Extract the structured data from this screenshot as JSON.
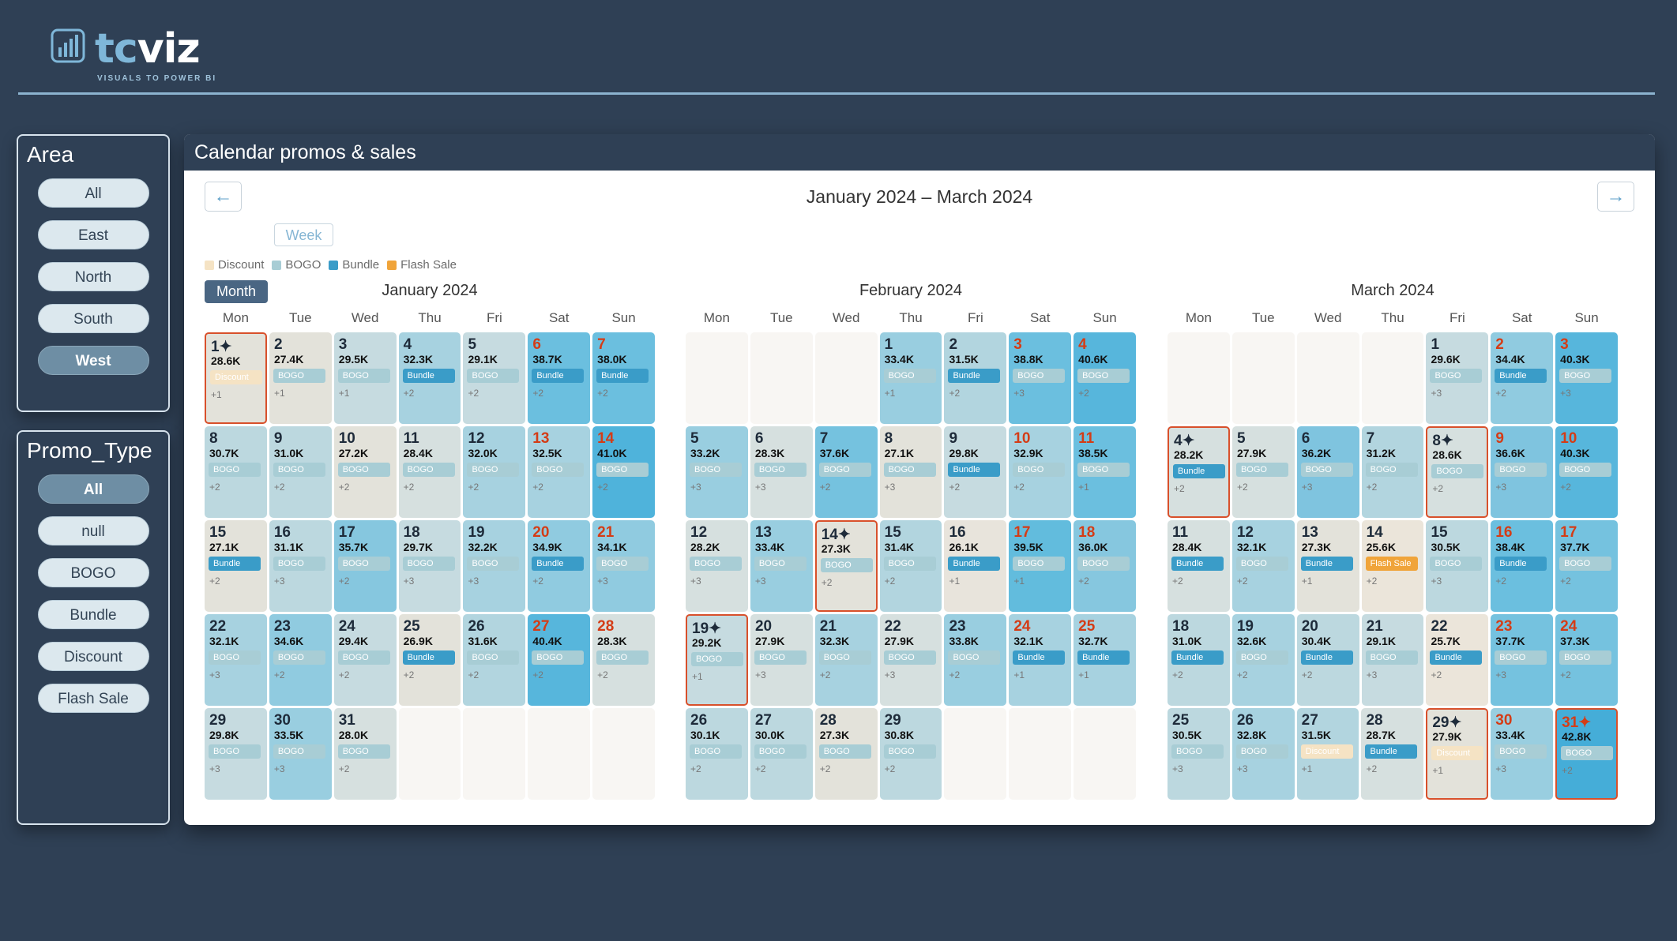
{
  "brand": {
    "name_prefix": "tc",
    "name_suffix": "viz",
    "tagline": "VISUALS TO POWER BI"
  },
  "area_slicer": {
    "title": "Area",
    "options": [
      {
        "label": "All",
        "selected": false
      },
      {
        "label": "East",
        "selected": false
      },
      {
        "label": "North",
        "selected": false
      },
      {
        "label": "South",
        "selected": false
      },
      {
        "label": "West",
        "selected": true
      }
    ]
  },
  "promo_slicer": {
    "title": "Promo_Type",
    "options": [
      {
        "label": "All",
        "selected": true
      },
      {
        "label": "null",
        "selected": false
      },
      {
        "label": "BOGO",
        "selected": false
      },
      {
        "label": "Bundle",
        "selected": false
      },
      {
        "label": "Discount",
        "selected": false
      },
      {
        "label": "Flash Sale",
        "selected": false
      }
    ]
  },
  "calendar": {
    "panel_title": "Calendar promos & sales",
    "range_title": "January 2024 – March 2024",
    "prev_label": "←",
    "next_label": "→",
    "views": {
      "month": "Month",
      "week": "Week",
      "active": "Month"
    },
    "legend": [
      {
        "label": "Discount",
        "color": "#f5e3c4"
      },
      {
        "label": "BOGO",
        "color": "#a8cdd5"
      },
      {
        "label": "Bundle",
        "color": "#3a9cc8"
      },
      {
        "label": "Flash Sale",
        "color": "#f0a43a"
      }
    ],
    "weekday_labels": [
      "Mon",
      "Tue",
      "Wed",
      "Thu",
      "Fri",
      "Sat",
      "Sun"
    ],
    "promo_colors": {
      "Discount": "#f5e3c4",
      "BOGO": "#a8cdd5",
      "Bundle": "#3a9cc8",
      "Flash Sale": "#f0a43a"
    },
    "months": [
      {
        "title": "January 2024",
        "first_weekday": 0,
        "days": [
          {
            "day": "1✦",
            "value": "28.6K",
            "promo": "Discount",
            "more": "+1",
            "bg": "#e3e2da",
            "highlight": true
          },
          {
            "day": "2",
            "value": "27.4K",
            "promo": "BOGO",
            "more": "+1",
            "bg": "#e3e2da"
          },
          {
            "day": "3",
            "value": "29.5K",
            "promo": "BOGO",
            "more": "+1",
            "bg": "#c6dbe0"
          },
          {
            "day": "4",
            "value": "32.3K",
            "promo": "Bundle",
            "more": "+2",
            "bg": "#a7d2e0"
          },
          {
            "day": "5",
            "value": "29.1K",
            "promo": "BOGO",
            "more": "+2",
            "bg": "#c6dbe0"
          },
          {
            "day": "6",
            "value": "38.7K",
            "promo": "Bundle",
            "more": "+2",
            "bg": "#6bbfdf"
          },
          {
            "day": "7",
            "value": "38.0K",
            "promo": "Bundle",
            "more": "+2",
            "bg": "#6bbfdf"
          },
          {
            "day": "8",
            "value": "30.7K",
            "promo": "BOGO",
            "more": "+2",
            "bg": "#bcd8df"
          },
          {
            "day": "9",
            "value": "31.0K",
            "promo": "BOGO",
            "more": "+2",
            "bg": "#bcd8df"
          },
          {
            "day": "10",
            "value": "27.2K",
            "promo": "BOGO",
            "more": "+2",
            "bg": "#e3e2da"
          },
          {
            "day": "11",
            "value": "28.4K",
            "promo": "BOGO",
            "more": "+2",
            "bg": "#d6e0df"
          },
          {
            "day": "12",
            "value": "32.0K",
            "promo": "BOGO",
            "more": "+2",
            "bg": "#a7d2e0"
          },
          {
            "day": "13",
            "value": "32.5K",
            "promo": "BOGO",
            "more": "+2",
            "bg": "#a7d2e0"
          },
          {
            "day": "14",
            "value": "41.0K",
            "promo": "BOGO",
            "more": "+2",
            "bg": "#4fb3db"
          },
          {
            "day": "15",
            "value": "27.1K",
            "promo": "Bundle",
            "more": "+2",
            "bg": "#e3e2da"
          },
          {
            "day": "16",
            "value": "31.1K",
            "promo": "BOGO",
            "more": "+3",
            "bg": "#bcd8df"
          },
          {
            "day": "17",
            "value": "35.7K",
            "promo": "BOGO",
            "more": "+2",
            "bg": "#86c7df"
          },
          {
            "day": "18",
            "value": "29.7K",
            "promo": "BOGO",
            "more": "+3",
            "bg": "#c6dbe0"
          },
          {
            "day": "19",
            "value": "32.2K",
            "promo": "BOGO",
            "more": "+3",
            "bg": "#a7d2e0"
          },
          {
            "day": "20",
            "value": "34.9K",
            "promo": "Bundle",
            "more": "+2",
            "bg": "#90cbe0"
          },
          {
            "day": "21",
            "value": "34.1K",
            "promo": "BOGO",
            "more": "+3",
            "bg": "#90cbe0"
          },
          {
            "day": "22",
            "value": "32.1K",
            "promo": "BOGO",
            "more": "+3",
            "bg": "#a7d2e0"
          },
          {
            "day": "23",
            "value": "34.6K",
            "promo": "BOGO",
            "more": "+2",
            "bg": "#90cbe0"
          },
          {
            "day": "24",
            "value": "29.4K",
            "promo": "BOGO",
            "more": "+2",
            "bg": "#c6dbe0"
          },
          {
            "day": "25",
            "value": "26.9K",
            "promo": "Bundle",
            "more": "+2",
            "bg": "#e3e2da"
          },
          {
            "day": "26",
            "value": "31.6K",
            "promo": "BOGO",
            "more": "+2",
            "bg": "#b2d5df"
          },
          {
            "day": "27",
            "value": "40.4K",
            "promo": "BOGO",
            "more": "+2",
            "bg": "#57b6dc"
          },
          {
            "day": "28",
            "value": "28.3K",
            "promo": "BOGO",
            "more": "+2",
            "bg": "#d6e0df"
          },
          {
            "day": "29",
            "value": "29.8K",
            "promo": "BOGO",
            "more": "+3",
            "bg": "#c6dbe0"
          },
          {
            "day": "30",
            "value": "33.5K",
            "promo": "BOGO",
            "more": "+3",
            "bg": "#99cee0"
          },
          {
            "day": "31",
            "value": "28.0K",
            "promo": "BOGO",
            "more": "+2",
            "bg": "#d6e0df"
          }
        ]
      },
      {
        "title": "February 2024",
        "first_weekday": 3,
        "days": [
          {
            "day": "1",
            "value": "33.4K",
            "promo": "BOGO",
            "more": "+1",
            "bg": "#99cee0"
          },
          {
            "day": "2",
            "value": "31.5K",
            "promo": "Bundle",
            "more": "+2",
            "bg": "#b2d5df"
          },
          {
            "day": "3",
            "value": "38.8K",
            "promo": "BOGO",
            "more": "+3",
            "bg": "#6bbfdf"
          },
          {
            "day": "4",
            "value": "40.6K",
            "promo": "BOGO",
            "more": "+2",
            "bg": "#57b6dc"
          },
          {
            "day": "5",
            "value": "33.2K",
            "promo": "BOGO",
            "more": "+3",
            "bg": "#99cee0"
          },
          {
            "day": "6",
            "value": "28.3K",
            "promo": "BOGO",
            "more": "+3",
            "bg": "#d6e0df"
          },
          {
            "day": "7",
            "value": "37.6K",
            "promo": "BOGO",
            "more": "+2",
            "bg": "#75c2df"
          },
          {
            "day": "8",
            "value": "27.1K",
            "promo": "BOGO",
            "more": "+3",
            "bg": "#e3e2da"
          },
          {
            "day": "9",
            "value": "29.8K",
            "promo": "Bundle",
            "more": "+2",
            "bg": "#c6dbe0"
          },
          {
            "day": "10",
            "value": "32.9K",
            "promo": "BOGO",
            "more": "+2",
            "bg": "#a7d2e0"
          },
          {
            "day": "11",
            "value": "38.5K",
            "promo": "BOGO",
            "more": "+1",
            "bg": "#6bbfdf"
          },
          {
            "day": "12",
            "value": "28.2K",
            "promo": "BOGO",
            "more": "+3",
            "bg": "#d6e0df"
          },
          {
            "day": "13",
            "value": "33.4K",
            "promo": "BOGO",
            "more": "+3",
            "bg": "#99cee0"
          },
          {
            "day": "14✦",
            "value": "27.3K",
            "promo": "BOGO",
            "more": "+2",
            "bg": "#e3e2da",
            "highlight": true
          },
          {
            "day": "15",
            "value": "31.4K",
            "promo": "BOGO",
            "more": "+2",
            "bg": "#b2d5df"
          },
          {
            "day": "16",
            "value": "26.1K",
            "promo": "Bundle",
            "more": "+1",
            "bg": "#e8e4dc"
          },
          {
            "day": "17",
            "value": "39.5K",
            "promo": "BOGO",
            "more": "+1",
            "bg": "#62bcdd"
          },
          {
            "day": "18",
            "value": "36.0K",
            "promo": "BOGO",
            "more": "+2",
            "bg": "#86c7df"
          },
          {
            "day": "19✦",
            "value": "29.2K",
            "promo": "BOGO",
            "more": "+1",
            "bg": "#c6dbe0",
            "highlight": true
          },
          {
            "day": "20",
            "value": "27.9K",
            "promo": "BOGO",
            "more": "+3",
            "bg": "#d6e0df"
          },
          {
            "day": "21",
            "value": "32.3K",
            "promo": "BOGO",
            "more": "+2",
            "bg": "#a7d2e0"
          },
          {
            "day": "22",
            "value": "27.9K",
            "promo": "BOGO",
            "more": "+3",
            "bg": "#d6e0df"
          },
          {
            "day": "23",
            "value": "33.8K",
            "promo": "BOGO",
            "more": "+2",
            "bg": "#99cee0"
          },
          {
            "day": "24",
            "value": "32.1K",
            "promo": "Bundle",
            "more": "+1",
            "bg": "#a7d2e0"
          },
          {
            "day": "25",
            "value": "32.7K",
            "promo": "Bundle",
            "more": "+1",
            "bg": "#a7d2e0"
          },
          {
            "day": "26",
            "value": "30.1K",
            "promo": "BOGO",
            "more": "+2",
            "bg": "#bcd8df"
          },
          {
            "day": "27",
            "value": "30.0K",
            "promo": "BOGO",
            "more": "+2",
            "bg": "#bcd8df"
          },
          {
            "day": "28",
            "value": "27.3K",
            "promo": "BOGO",
            "more": "+2",
            "bg": "#e3e2da"
          },
          {
            "day": "29",
            "value": "30.8K",
            "promo": "BOGO",
            "more": "+2",
            "bg": "#bcd8df"
          }
        ]
      },
      {
        "title": "March 2024",
        "first_weekday": 4,
        "days": [
          {
            "day": "1",
            "value": "29.6K",
            "promo": "BOGO",
            "more": "+3",
            "bg": "#c6dbe0"
          },
          {
            "day": "2",
            "value": "34.4K",
            "promo": "Bundle",
            "more": "+2",
            "bg": "#90cbe0"
          },
          {
            "day": "3",
            "value": "40.3K",
            "promo": "BOGO",
            "more": "+3",
            "bg": "#57b6dc"
          },
          {
            "day": "4✦",
            "value": "28.2K",
            "promo": "Bundle",
            "more": "+2",
            "bg": "#d6e0df",
            "highlight": true
          },
          {
            "day": "5",
            "value": "27.9K",
            "promo": "BOGO",
            "more": "+2",
            "bg": "#d6e0df"
          },
          {
            "day": "6",
            "value": "36.2K",
            "promo": "BOGO",
            "more": "+3",
            "bg": "#7fc4df"
          },
          {
            "day": "7",
            "value": "31.2K",
            "promo": "BOGO",
            "more": "+2",
            "bg": "#b2d5df"
          },
          {
            "day": "8✦",
            "value": "28.6K",
            "promo": "BOGO",
            "more": "+2",
            "bg": "#d6e0df",
            "highlight": true
          },
          {
            "day": "9",
            "value": "36.6K",
            "promo": "BOGO",
            "more": "+3",
            "bg": "#7fc4df"
          },
          {
            "day": "10",
            "value": "40.3K",
            "promo": "BOGO",
            "more": "+2",
            "bg": "#57b6dc"
          },
          {
            "day": "11",
            "value": "28.4K",
            "promo": "Bundle",
            "more": "+2",
            "bg": "#d6e0df"
          },
          {
            "day": "12",
            "value": "32.1K",
            "promo": "BOGO",
            "more": "+2",
            "bg": "#a7d2e0"
          },
          {
            "day": "13",
            "value": "27.3K",
            "promo": "Bundle",
            "more": "+1",
            "bg": "#e3e2da"
          },
          {
            "day": "14",
            "value": "25.6K",
            "promo": "Flash Sale",
            "more": "+2",
            "bg": "#ebe5da"
          },
          {
            "day": "15",
            "value": "30.5K",
            "promo": "BOGO",
            "more": "+3",
            "bg": "#bcd8df"
          },
          {
            "day": "16",
            "value": "38.4K",
            "promo": "Bundle",
            "more": "+2",
            "bg": "#6bbfdf"
          },
          {
            "day": "17",
            "value": "37.7K",
            "promo": "BOGO",
            "more": "+2",
            "bg": "#75c2df"
          },
          {
            "day": "18",
            "value": "31.0K",
            "promo": "Bundle",
            "more": "+2",
            "bg": "#bcd8df"
          },
          {
            "day": "19",
            "value": "32.6K",
            "promo": "BOGO",
            "more": "+2",
            "bg": "#a7d2e0"
          },
          {
            "day": "20",
            "value": "30.4K",
            "promo": "Bundle",
            "more": "+2",
            "bg": "#bcd8df"
          },
          {
            "day": "21",
            "value": "29.1K",
            "promo": "BOGO",
            "more": "+3",
            "bg": "#c6dbe0"
          },
          {
            "day": "22",
            "value": "25.7K",
            "promo": "Bundle",
            "more": "+2",
            "bg": "#ebe5da"
          },
          {
            "day": "23",
            "value": "37.7K",
            "promo": "BOGO",
            "more": "+3",
            "bg": "#75c2df"
          },
          {
            "day": "24",
            "value": "37.3K",
            "promo": "BOGO",
            "more": "+2",
            "bg": "#75c2df"
          },
          {
            "day": "25",
            "value": "30.5K",
            "promo": "BOGO",
            "more": "+3",
            "bg": "#bcd8df"
          },
          {
            "day": "26",
            "value": "32.8K",
            "promo": "BOGO",
            "more": "+3",
            "bg": "#a7d2e0"
          },
          {
            "day": "27",
            "value": "31.5K",
            "promo": "Discount",
            "more": "+1",
            "bg": "#b2d5df"
          },
          {
            "day": "28",
            "value": "28.7K",
            "promo": "Bundle",
            "more": "+2",
            "bg": "#d6e0df"
          },
          {
            "day": "29✦",
            "value": "27.9K",
            "promo": "Discount",
            "more": "+1",
            "bg": "#e3e2da",
            "highlight": true
          },
          {
            "day": "30",
            "value": "33.4K",
            "promo": "BOGO",
            "more": "+3",
            "bg": "#99cee0"
          },
          {
            "day": "31✦",
            "value": "42.8K",
            "promo": "BOGO",
            "more": "+2",
            "bg": "#45add8",
            "highlight": true
          }
        ]
      }
    ]
  }
}
